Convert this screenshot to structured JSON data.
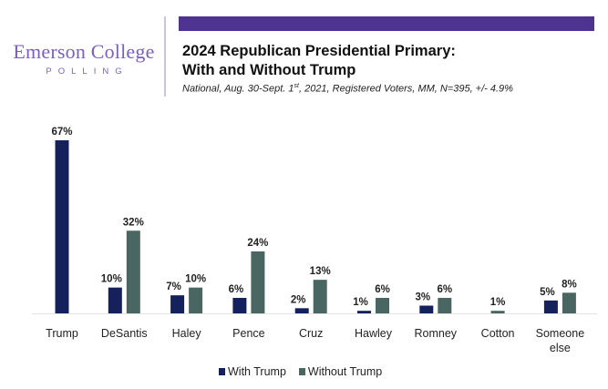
{
  "header": {
    "logo_main": "Emerson College",
    "logo_sub": "POLLING",
    "title_line1": "2024 Republican Presidential Primary:",
    "title_line2": "With and Without Trump",
    "subtitle_pre": "National, Aug. 30-Sept. 1",
    "subtitle_sup": "st",
    "subtitle_post": ", 2021, Registered Voters, MM, N=395, +/- 4.9%"
  },
  "colors": {
    "brand_purple": "#4f3391",
    "with_trump": "#14215c",
    "without_trump": "#4a6663"
  },
  "chart_data": {
    "type": "bar",
    "title": "2024 Republican Presidential Primary: With and Without Trump",
    "xlabel": "",
    "ylabel": "",
    "ylim": [
      0,
      70
    ],
    "grid": false,
    "legend_position": "bottom",
    "categories": [
      "Trump",
      "DeSantis",
      "Haley",
      "Pence",
      "Cruz",
      "Hawley",
      "Romney",
      "Cotton",
      "Someone else"
    ],
    "series": [
      {
        "name": "With Trump",
        "values": [
          67,
          10,
          7,
          6,
          2,
          1,
          3,
          null,
          5
        ]
      },
      {
        "name": "Without Trump",
        "values": [
          null,
          32,
          10,
          24,
          13,
          6,
          6,
          1,
          8
        ]
      }
    ]
  },
  "legend": {
    "with_label": "With Trump",
    "without_label": "Without Trump"
  }
}
